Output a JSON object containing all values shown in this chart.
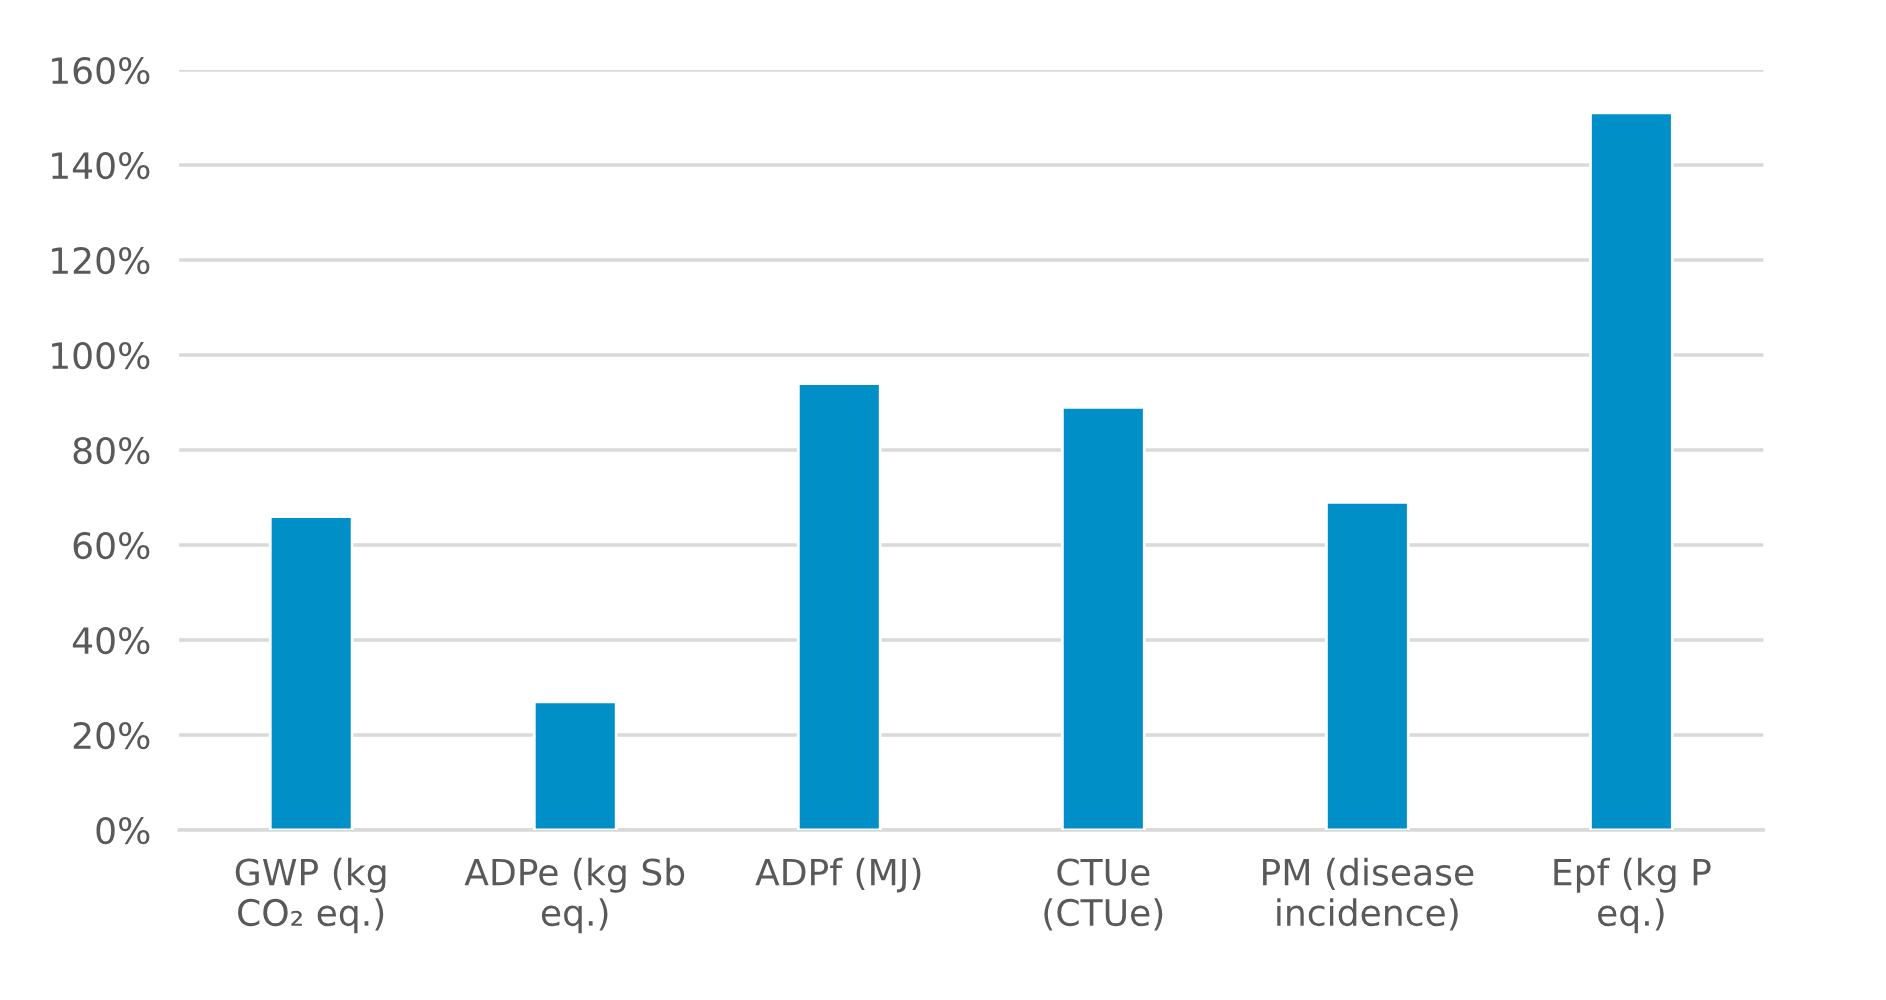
{
  "chart_data": {
    "type": "bar",
    "categories": [
      "GWP (kg\nCO₂ eq.)",
      "ADPe (kg Sb\neq.)",
      "ADPf (MJ)",
      "CTUe\n(CTUe)",
      "PM (disease\nincidence)",
      "Epf (kg P\neq.)"
    ],
    "values": [
      66,
      27,
      94,
      89,
      69,
      151
    ],
    "color": "#008fc7",
    "ylim": [
      0,
      160
    ],
    "yticks": [
      {
        "value": 0,
        "label": "0%"
      },
      {
        "value": 20,
        "label": "20%"
      },
      {
        "value": 40,
        "label": "40%"
      },
      {
        "value": 60,
        "label": "60%"
      },
      {
        "value": 80,
        "label": "80%"
      },
      {
        "value": 100,
        "label": "100%"
      },
      {
        "value": 120,
        "label": "120%"
      },
      {
        "value": 140,
        "label": "140%"
      },
      {
        "value": 160,
        "label": "160%"
      }
    ],
    "grid": "y",
    "legend": false
  }
}
